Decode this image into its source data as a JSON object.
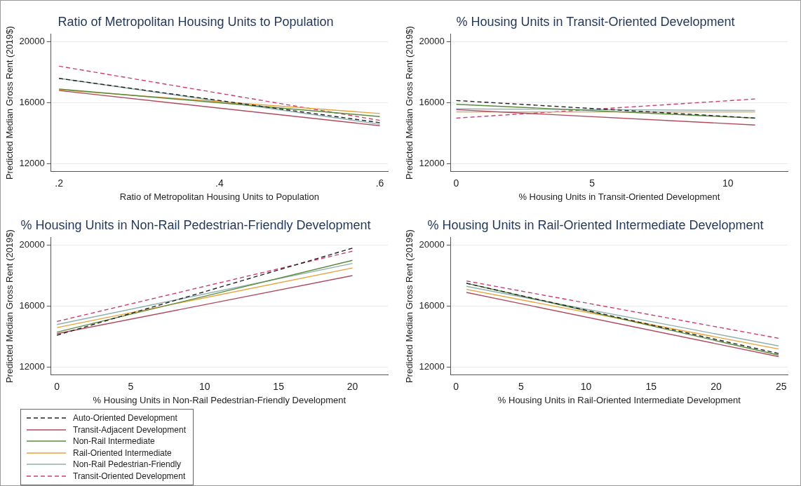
{
  "chart_data": [
    {
      "type": "line",
      "title": "Ratio of Metropolitan Housing Units to Population",
      "xlabel": "Ratio of Metropolitan Housing Units to Population",
      "ylabel": "Predicted Median Gross Rent (2019$)",
      "x": [
        0.2,
        0.6
      ],
      "xlim": [
        0.19,
        0.61
      ],
      "xticks": [
        {
          "value": 0.2,
          "label": ".2"
        },
        {
          "value": 0.4,
          "label": ".4"
        },
        {
          "value": 0.6,
          "label": ".6"
        }
      ],
      "ylim": [
        11500,
        20500
      ],
      "yticks": [
        12000,
        16000,
        20000
      ],
      "grid": "y",
      "marker": "none",
      "legend": false,
      "series": [
        {
          "color": "#222222",
          "line_style": "dashed",
          "values": [
            17600,
            14700
          ]
        },
        {
          "color": "#b04a5e",
          "line_style": "solid",
          "values": [
            16800,
            14500
          ]
        },
        {
          "color": "#5a8a3c",
          "line_style": "solid",
          "values": [
            16900,
            15100
          ]
        },
        {
          "color": "#e8a238",
          "line_style": "solid",
          "values": [
            16850,
            15300
          ]
        },
        {
          "color": "#8fb0ad",
          "line_style": "solid",
          "values": [
            17600,
            14600
          ]
        },
        {
          "color": "#cc3d70",
          "line_style": "dashed",
          "values": [
            18400,
            14850
          ]
        }
      ]
    },
    {
      "type": "line",
      "title": "% Housing Units in Transit-Oriented Development",
      "xlabel": "% Housing Units in Transit-Oriented Development",
      "ylabel": "Predicted Median Gross Rent (2019$)",
      "x": [
        0,
        11
      ],
      "xlim": [
        -0.2,
        12.2
      ],
      "xticks": [
        0,
        5,
        10
      ],
      "ylim": [
        11500,
        20500
      ],
      "yticks": [
        12000,
        16000,
        20000
      ],
      "grid": "y",
      "marker": "none",
      "legend": false,
      "series": [
        {
          "color": "#222222",
          "line_style": "dashed",
          "values": [
            16150,
            15000
          ]
        },
        {
          "color": "#b04a5e",
          "line_style": "solid",
          "values": [
            15550,
            14550
          ]
        },
        {
          "color": "#5a8a3c",
          "line_style": "solid",
          "values": [
            15900,
            15000
          ]
        },
        {
          "color": "#e8a238",
          "line_style": "solid",
          "values": [
            15400,
            15400
          ]
        },
        {
          "color": "#8fb0ad",
          "line_style": "solid",
          "values": [
            15600,
            15500
          ]
        },
        {
          "color": "#cc3d70",
          "line_style": "dashed",
          "values": [
            15000,
            16250
          ]
        }
      ]
    },
    {
      "type": "line",
      "title": "% Housing Units in Non-Rail Pedestrian-Friendly Development",
      "xlabel": "% Housing Units in Non-Rail Pedestrian-Friendly Development",
      "ylabel": "Predicted Median Gross Rent (2019$)",
      "x": [
        0,
        20
      ],
      "xlim": [
        -0.4,
        22.4
      ],
      "xticks": [
        0,
        5,
        10,
        15,
        20
      ],
      "ylim": [
        11500,
        20500
      ],
      "yticks": [
        12000,
        16000,
        20000
      ],
      "grid": "y",
      "marker": "none",
      "legend": "bottom",
      "series": [
        {
          "name": "Auto-Oriented Development",
          "color": "#222222",
          "line_style": "dashed",
          "values": [
            14100,
            19800
          ]
        },
        {
          "name": "Transit-Adjacent Development",
          "color": "#b04a5e",
          "line_style": "solid",
          "values": [
            14200,
            18000
          ]
        },
        {
          "name": "Non-Rail Intermediate",
          "color": "#5a8a3c",
          "line_style": "solid",
          "values": [
            14300,
            19000
          ]
        },
        {
          "name": "Rail-Oriented Intermediate",
          "color": "#e8a238",
          "line_style": "solid",
          "values": [
            14600,
            18500
          ]
        },
        {
          "name": "Non-Rail Pedestrian-Friendly",
          "color": "#8fb0ad",
          "line_style": "solid",
          "values": [
            14800,
            18800
          ]
        },
        {
          "name": "Transit-Oriented Development",
          "color": "#cc3d70",
          "line_style": "dashed",
          "values": [
            15000,
            19600
          ]
        }
      ]
    },
    {
      "type": "line",
      "title": "% Housing Units in Rail-Oriented Intermediate Development",
      "xlabel": "% Housing Units in Rail-Oriented Intermediate Development",
      "ylabel": "Predicted Median Gross Rent (2019$)",
      "x": [
        0.8,
        24.8
      ],
      "xlim": [
        -0.4,
        25.5
      ],
      "xticks": [
        0,
        5,
        10,
        15,
        20,
        25
      ],
      "ylim": [
        11500,
        20500
      ],
      "yticks": [
        12000,
        16000,
        20000
      ],
      "grid": "y",
      "marker": "none",
      "legend": false,
      "series": [
        {
          "color": "#222222",
          "line_style": "dashed",
          "values": [
            17500,
            12900
          ]
        },
        {
          "color": "#b04a5e",
          "line_style": "solid",
          "values": [
            16900,
            12700
          ]
        },
        {
          "color": "#5a8a3c",
          "line_style": "solid",
          "values": [
            17500,
            12800
          ]
        },
        {
          "color": "#e8a238",
          "line_style": "solid",
          "values": [
            17100,
            13200
          ]
        },
        {
          "color": "#8fb0ad",
          "line_style": "solid",
          "values": [
            17300,
            13400
          ]
        },
        {
          "color": "#cc3d70",
          "line_style": "dashed",
          "values": [
            17650,
            13900
          ]
        }
      ]
    }
  ]
}
